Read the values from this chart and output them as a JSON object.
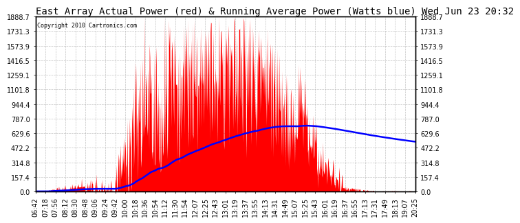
{
  "title": "East Array Actual Power (red) & Running Average Power (Watts blue) Wed Jun 23 20:32",
  "copyright": "Copyright 2010 Cartronics.com",
  "ymax": 1888.7,
  "ymin": 0.0,
  "yticks": [
    0.0,
    157.4,
    314.8,
    472.2,
    629.6,
    787.0,
    944.4,
    1101.8,
    1259.1,
    1416.5,
    1573.9,
    1731.3,
    1888.7
  ],
  "xtick_labels": [
    "06:42",
    "07:18",
    "07:56",
    "08:12",
    "08:30",
    "08:48",
    "09:06",
    "09:24",
    "09:42",
    "10:00",
    "10:18",
    "10:36",
    "10:54",
    "11:12",
    "11:30",
    "11:54",
    "12:07",
    "12:25",
    "12:43",
    "13:01",
    "13:19",
    "13:37",
    "13:55",
    "14:13",
    "14:31",
    "14:49",
    "15:07",
    "15:25",
    "15:43",
    "16:01",
    "16:19",
    "16:37",
    "16:55",
    "17:13",
    "17:31",
    "17:49",
    "18:13",
    "19:07",
    "20:25"
  ],
  "background_color": "#ffffff",
  "plot_bg_color": "#ffffff",
  "grid_color": "#aaaaaa",
  "red_color": "#ff0000",
  "blue_color": "#0000ff",
  "title_fontsize": 10,
  "copyright_fontsize": 6,
  "tick_fontsize": 7
}
